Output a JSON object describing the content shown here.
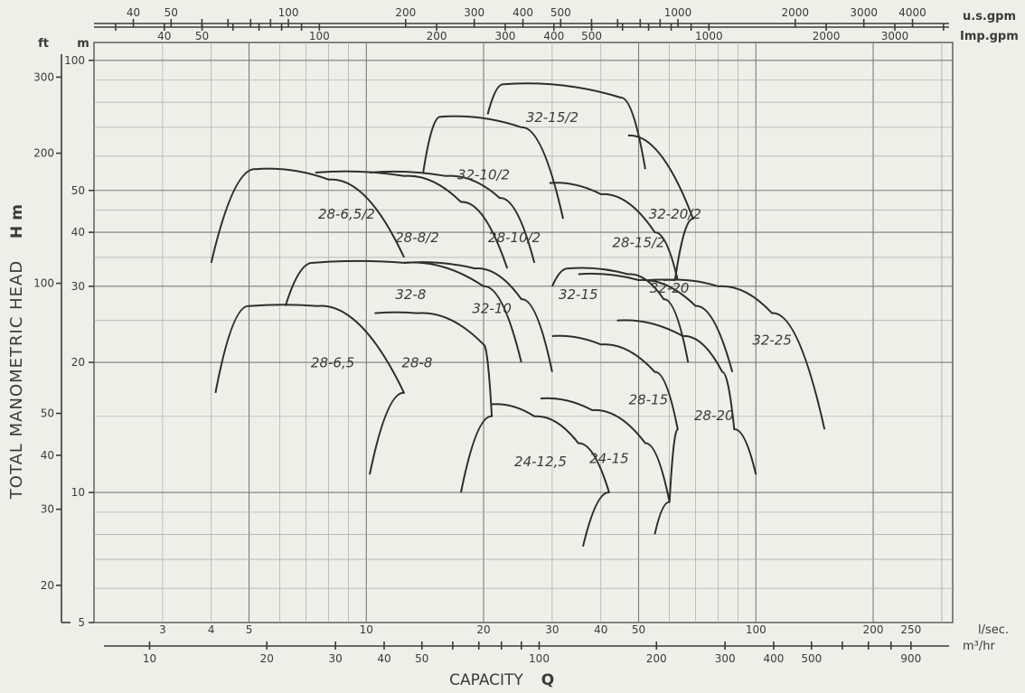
{
  "chart_data": {
    "type": "line",
    "title": "",
    "xlabel": "CAPACITY",
    "xlabel_symbol": "Q",
    "ylabel": "TOTAL MANOMETRIC HEAD",
    "ylabel_symbol": "H m",
    "x_scale": "log",
    "y_scale": "log",
    "xlim_lsec": [
      2,
      320
    ],
    "ylim_m": [
      5,
      110
    ],
    "grid": true,
    "axes": {
      "left_outer_unit": "ft",
      "left_outer_ticks": [
        {
          "label": "300",
          "value": 300
        },
        {
          "label": "200",
          "value": 200
        },
        {
          "label": "100",
          "value": 100
        },
        {
          "label": "50",
          "value": 50
        },
        {
          "label": "40",
          "value": 40
        },
        {
          "label": "30",
          "value": 30
        },
        {
          "label": "20",
          "value": 20
        }
      ],
      "left_inner_unit": "m",
      "left_inner_ticks": [
        {
          "label": "100",
          "value": 100
        },
        {
          "label": "50",
          "value": 50
        },
        {
          "label": "40",
          "value": 40
        },
        {
          "label": "30",
          "value": 30
        },
        {
          "label": "20",
          "value": 20
        },
        {
          "label": "10",
          "value": 10
        },
        {
          "label": "5",
          "value": 5
        }
      ],
      "bottom_inner_unit": "l/sec.",
      "bottom_inner_ticks": [
        {
          "label": "3",
          "value": 3
        },
        {
          "label": "4",
          "value": 4
        },
        {
          "label": "5",
          "value": 5
        },
        {
          "label": "10",
          "value": 10
        },
        {
          "label": "20",
          "value": 20
        },
        {
          "label": "30",
          "value": 30
        },
        {
          "label": "40",
          "value": 40
        },
        {
          "label": "50",
          "value": 50
        },
        {
          "label": "100",
          "value": 100
        },
        {
          "label": "200",
          "value": 200
        },
        {
          "label": "250",
          "value": 250
        }
      ],
      "bottom_outer_unit": "m3/hr",
      "bottom_outer_unit_display": "m³/hr",
      "bottom_outer_ticks": [
        {
          "label": "10",
          "value": 10
        },
        {
          "label": "20",
          "value": 20
        },
        {
          "label": "30",
          "value": 30
        },
        {
          "label": "40",
          "value": 40
        },
        {
          "label": "50",
          "value": 50
        },
        {
          "label": "100",
          "value": 100
        },
        {
          "label": "200",
          "value": 200
        },
        {
          "label": "300",
          "value": 300
        },
        {
          "label": "400",
          "value": 400
        },
        {
          "label": "500",
          "value": 500
        },
        {
          "label": "900",
          "value": 900
        }
      ],
      "top_outer_unit": "u.s.gpm",
      "top_outer_ticks": [
        {
          "label": "40",
          "value": 40
        },
        {
          "label": "50",
          "value": 50
        },
        {
          "label": "100",
          "value": 100
        },
        {
          "label": "200",
          "value": 200
        },
        {
          "label": "300",
          "value": 300
        },
        {
          "label": "400",
          "value": 400
        },
        {
          "label": "500",
          "value": 500
        },
        {
          "label": "1000",
          "value": 1000
        },
        {
          "label": "2000",
          "value": 2000
        },
        {
          "label": "3000",
          "value": 3000
        },
        {
          "label": "4000",
          "value": 4000
        }
      ],
      "top_inner_unit": "Imp.gpm",
      "top_inner_ticks": [
        {
          "label": "40",
          "value": 40
        },
        {
          "label": "50",
          "value": 50
        },
        {
          "label": "100",
          "value": 100
        },
        {
          "label": "200",
          "value": 200
        },
        {
          "label": "300",
          "value": 300
        },
        {
          "label": "400",
          "value": 400
        },
        {
          "label": "500",
          "value": 500
        },
        {
          "label": "1000",
          "value": 1000
        },
        {
          "label": "2000",
          "value": 2000
        },
        {
          "label": "3000",
          "value": 3000
        }
      ]
    },
    "series": [
      {
        "name": "28-6.5/2",
        "label_display": "28-6,5/2",
        "outline": [
          [
            4.0,
            34
          ],
          [
            5.2,
            56
          ],
          [
            8.0,
            53
          ],
          [
            12.5,
            35
          ]
        ],
        "label_at": [
          8.9,
          43
        ]
      },
      {
        "name": "28-8/2",
        "label_display": "28-8/2",
        "outline": [
          [
            7.4,
            55
          ],
          [
            12.5,
            54
          ],
          [
            17.5,
            47
          ],
          [
            23,
            33
          ]
        ],
        "label_at": [
          13.5,
          38
        ]
      },
      {
        "name": "28-10/2",
        "label_display": "28-10/2",
        "outline": [
          [
            10.2,
            55
          ],
          [
            16,
            54
          ],
          [
            22,
            48
          ],
          [
            27,
            34
          ]
        ],
        "label_at": [
          24,
          38
        ]
      },
      {
        "name": "32-10/2",
        "label_display": "32-10/2",
        "outline": [
          [
            14.0,
            55
          ],
          [
            15.5,
            74
          ],
          [
            25,
            70
          ],
          [
            32,
            43
          ]
        ],
        "label_at": [
          20,
          53
        ]
      },
      {
        "name": "32-15/2",
        "label_display": "32-15/2",
        "outline": [
          [
            20.5,
            75
          ],
          [
            22.5,
            88
          ],
          [
            45,
            82
          ],
          [
            52,
            56
          ]
        ],
        "label_at": [
          30,
          72
        ]
      },
      {
        "name": "28-15/2",
        "label_display": "28-15/2",
        "outline": [
          [
            29.5,
            52
          ],
          [
            40,
            49
          ],
          [
            55,
            40
          ],
          [
            63,
            31
          ]
        ],
        "label_at": [
          50,
          37
        ]
      },
      {
        "name": "32-20/2",
        "label_display": "32-20/2",
        "outline": [
          [
            47,
            67
          ],
          [
            69,
            43
          ],
          [
            62,
            31
          ],
          [
            53,
            31
          ]
        ],
        "label_at": [
          62,
          43
        ]
      },
      {
        "name": "32-8",
        "label_display": "32-8",
        "outline": [
          [
            6.2,
            27
          ],
          [
            7.3,
            34
          ],
          [
            12.5,
            34
          ],
          [
            20,
            30
          ],
          [
            25,
            20
          ]
        ],
        "label_at": [
          13,
          28
        ]
      },
      {
        "name": "32-10",
        "label_display": "32-10",
        "outline": [
          [
            12.5,
            34
          ],
          [
            19,
            33
          ],
          [
            25,
            28
          ],
          [
            30,
            19
          ]
        ],
        "label_at": [
          21,
          26
        ]
      },
      {
        "name": "32-15",
        "label_display": "32-15",
        "outline": [
          [
            30,
            30
          ],
          [
            33,
            33
          ],
          [
            47,
            32
          ],
          [
            58,
            28
          ],
          [
            67,
            20
          ]
        ],
        "label_at": [
          35,
          28
        ]
      },
      {
        "name": "32-20",
        "label_display": "32-20",
        "outline": [
          [
            35,
            32
          ],
          [
            50,
            31
          ],
          [
            70,
            27
          ],
          [
            87,
            19
          ]
        ],
        "label_at": [
          60,
          29
        ]
      },
      {
        "name": "32-25",
        "label_display": "32-25",
        "outline": [
          [
            58,
            31
          ],
          [
            80,
            30
          ],
          [
            110,
            26
          ],
          [
            150,
            14
          ]
        ],
        "label_at": [
          110,
          22
        ]
      },
      {
        "name": "28-6.5",
        "label_display": "28-6,5",
        "outline": [
          [
            4.1,
            17
          ],
          [
            5.0,
            27
          ],
          [
            7.5,
            27
          ],
          [
            12.5,
            17
          ],
          [
            10.2,
            11
          ]
        ],
        "label_at": [
          8.2,
          19.5
        ]
      },
      {
        "name": "28-8",
        "label_display": "28-8",
        "outline": [
          [
            10.5,
            26
          ],
          [
            13.5,
            26
          ],
          [
            20,
            22
          ],
          [
            21,
            15
          ],
          [
            17.5,
            10
          ]
        ],
        "label_at": [
          13.5,
          19.5
        ]
      },
      {
        "name": "24-12.5",
        "label_display": "24-12,5",
        "outline": [
          [
            21,
            16
          ],
          [
            27,
            15
          ],
          [
            35,
            13
          ],
          [
            42,
            10
          ],
          [
            36,
            7.5
          ]
        ],
        "label_at": [
          28,
          11.5
        ]
      },
      {
        "name": "24-15",
        "label_display": "24-15",
        "outline": [
          [
            28,
            16.5
          ],
          [
            38,
            15.5
          ],
          [
            52,
            13
          ],
          [
            60,
            9.5
          ],
          [
            55,
            8
          ]
        ],
        "label_at": [
          42,
          11.7
        ]
      },
      {
        "name": "28-15",
        "label_display": "28-15",
        "outline": [
          [
            30,
            23
          ],
          [
            40,
            22
          ],
          [
            55,
            19
          ],
          [
            63,
            14
          ],
          [
            60,
            9.5
          ]
        ],
        "label_at": [
          53,
          16
        ]
      },
      {
        "name": "28-20",
        "label_display": "28-20",
        "outline": [
          [
            44,
            25
          ],
          [
            65,
            23
          ],
          [
            82,
            19
          ],
          [
            88,
            14
          ],
          [
            100,
            11
          ]
        ],
        "label_at": [
          78,
          14.7
        ]
      }
    ]
  }
}
